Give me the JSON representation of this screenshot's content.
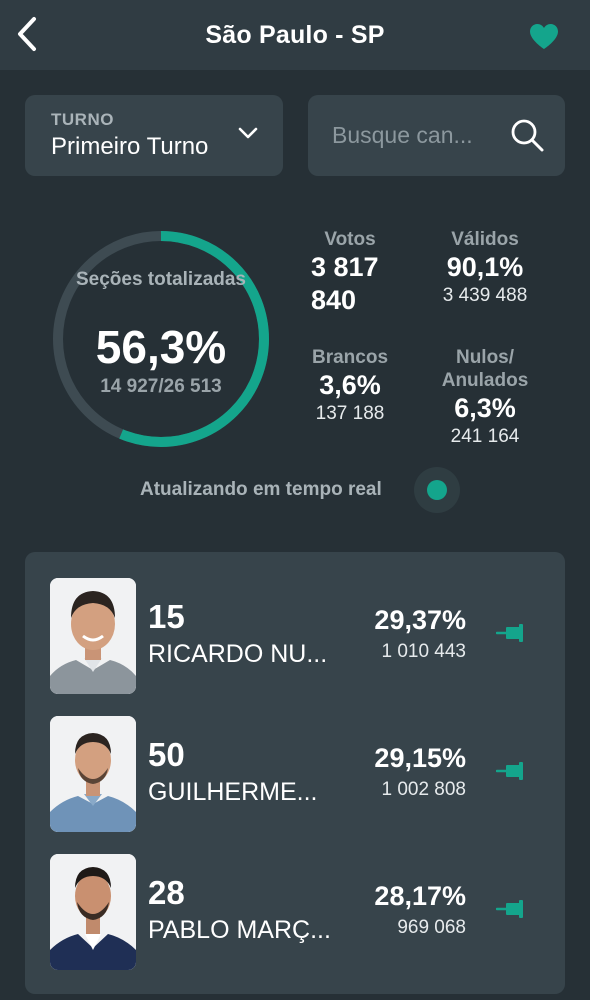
{
  "header": {
    "title": "São Paulo - SP",
    "back_icon": "chevron-left-icon",
    "favorite_icon": "heart-icon"
  },
  "filter": {
    "turno_label": "TURNO",
    "turno_value": "Primeiro Turno",
    "chevron_icon": "chevron-down-icon"
  },
  "search": {
    "placeholder": "Busque can...",
    "icon": "search-icon"
  },
  "summary": {
    "ring_label": "Seções totalizadas",
    "ring_progress": 0.563,
    "ring_percent": "56,3%",
    "ring_count": "14 927/26 513",
    "votos_label": "Votos",
    "votos_line1": "3 817",
    "votos_line2": "840",
    "validos_label": "Válidos",
    "validos_pct": "90,1%",
    "validos_count": "3 439 488",
    "brancos_label": "Brancos",
    "brancos_pct": "3,6%",
    "brancos_count": "137 188",
    "nulos_label_line1": "Nulos/",
    "nulos_label_line2": "Anulados",
    "nulos_pct": "6,3%",
    "nulos_count": "241 164"
  },
  "live": {
    "text": "Atualizando em tempo real"
  },
  "candidates": [
    {
      "number": "15",
      "name": "RICARDO NU...",
      "percent": "29,37%",
      "votes": "1 010 443",
      "pin_icon": "pin-icon"
    },
    {
      "number": "50",
      "name": "GUILHERME...",
      "percent": "29,15%",
      "votes": "1 002 808",
      "pin_icon": "pin-icon"
    },
    {
      "number": "28",
      "name": "PABLO MARÇ...",
      "percent": "28,17%",
      "votes": "969 068",
      "pin_icon": "pin-icon"
    }
  ],
  "colors": {
    "accent": "#14a58c",
    "background": "#263036",
    "surface": "#37444b",
    "header": "#303c43"
  }
}
